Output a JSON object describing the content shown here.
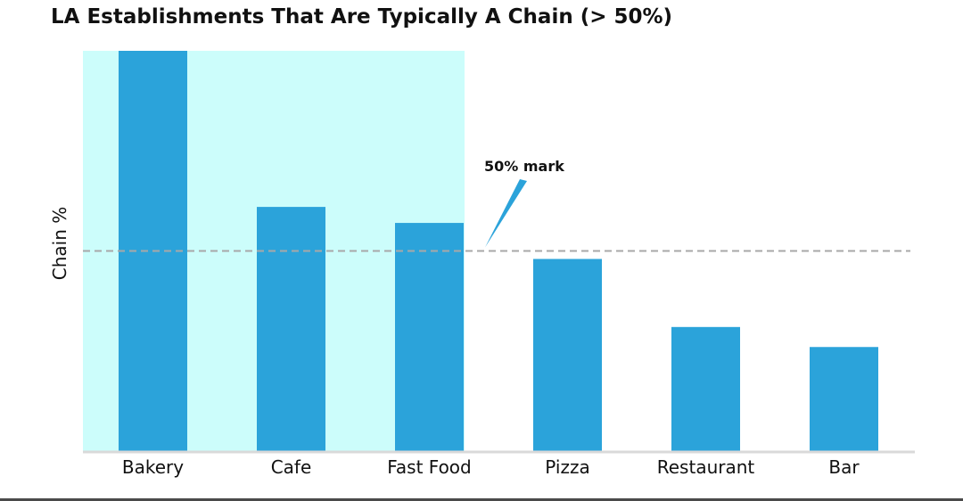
{
  "chart_data": {
    "type": "bar",
    "title": "LA Establishments That Are Typically A Chain (> 50%)",
    "xlabel": "",
    "ylabel": "Chain %",
    "categories": [
      "Bakery",
      "Cafe",
      "Fast Food",
      "Pizza",
      "Restaurant",
      "Bar"
    ],
    "values": [
      100,
      61,
      57,
      48,
      31,
      26
    ],
    "ylim": [
      0,
      100
    ],
    "reference_line": {
      "value": 50,
      "style": "dashed"
    },
    "highlight_categories": [
      "Bakery",
      "Cafe",
      "Fast Food"
    ],
    "annotation": {
      "text": "50% mark",
      "points_to_value": 50
    },
    "grid": false,
    "legend": "none",
    "colors": {
      "bar": "#2ba3da",
      "highlight": "#ccfdfb",
      "reference_line": "#a8a8a8",
      "axis": "#d9d9d9",
      "arrow": "#2ba3da",
      "text": "#111111"
    }
  }
}
